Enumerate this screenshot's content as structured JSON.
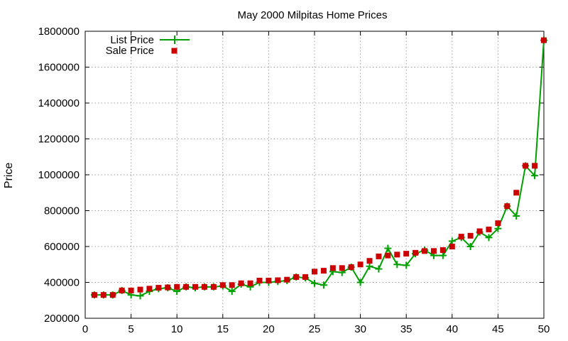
{
  "chart_data": {
    "type": "line",
    "title": "May 2000 Milpitas Home Prices",
    "xlabel": "",
    "ylabel": "Price",
    "xlim": [
      0,
      50
    ],
    "ylim": [
      200000,
      1800000
    ],
    "x_ticks": [
      0,
      5,
      10,
      15,
      20,
      25,
      30,
      35,
      40,
      45,
      50
    ],
    "y_ticks": [
      200000,
      400000,
      600000,
      800000,
      1000000,
      1200000,
      1400000,
      1600000,
      1800000
    ],
    "grid": true,
    "legend_position": "top-left",
    "x": [
      1,
      2,
      3,
      4,
      5,
      6,
      7,
      8,
      9,
      10,
      11,
      12,
      13,
      14,
      15,
      16,
      17,
      18,
      19,
      20,
      21,
      22,
      23,
      24,
      25,
      26,
      27,
      28,
      29,
      30,
      31,
      32,
      33,
      34,
      35,
      36,
      37,
      38,
      39,
      40,
      41,
      42,
      43,
      44,
      45,
      46,
      47,
      48,
      49,
      50
    ],
    "series": [
      {
        "name": "List Price",
        "style": "line-with-plus-markers",
        "color": "#00a000",
        "values": [
          330000,
          330000,
          330000,
          355000,
          330000,
          325000,
          350000,
          365000,
          370000,
          350000,
          375000,
          370000,
          375000,
          375000,
          380000,
          350000,
          390000,
          375000,
          400000,
          400000,
          405000,
          410000,
          430000,
          425000,
          395000,
          385000,
          460000,
          455000,
          485000,
          400000,
          490000,
          475000,
          590000,
          500000,
          495000,
          560000,
          580000,
          550000,
          550000,
          630000,
          650000,
          600000,
          680000,
          650000,
          700000,
          825000,
          770000,
          1050000,
          995000,
          1750000
        ]
      },
      {
        "name": "Sale Price",
        "style": "square-markers",
        "color": "#cc0000",
        "values": [
          330000,
          330000,
          330000,
          355000,
          355000,
          360000,
          365000,
          370000,
          372000,
          375000,
          375000,
          375000,
          375000,
          375000,
          385000,
          385000,
          395000,
          395000,
          410000,
          410000,
          412000,
          415000,
          430000,
          430000,
          460000,
          465000,
          480000,
          480000,
          485000,
          500000,
          520000,
          545000,
          550000,
          555000,
          560000,
          565000,
          575000,
          575000,
          580000,
          600000,
          655000,
          660000,
          685000,
          695000,
          730000,
          825000,
          900000,
          1050000,
          1050000,
          1750000
        ]
      }
    ]
  }
}
